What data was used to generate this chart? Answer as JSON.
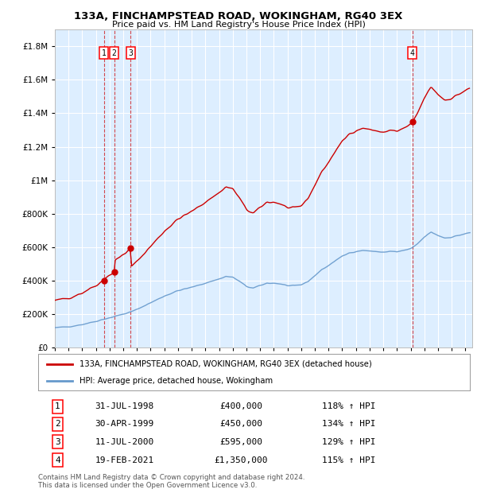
{
  "title": "133A, FINCHAMPSTEAD ROAD, WOKINGHAM, RG40 3EX",
  "subtitle": "Price paid vs. HM Land Registry's House Price Index (HPI)",
  "legend_line1": "133A, FINCHAMPSTEAD ROAD, WOKINGHAM, RG40 3EX (detached house)",
  "legend_line2": "HPI: Average price, detached house, Wokingham",
  "footer_line1": "Contains HM Land Registry data © Crown copyright and database right 2024.",
  "footer_line2": "This data is licensed under the Open Government Licence v3.0.",
  "transactions": [
    {
      "label": "1",
      "date": "31-JUL-1998",
      "price": 400000,
      "hpi_pct": "118% ↑ HPI",
      "year": 1998.58
    },
    {
      "label": "2",
      "date": "30-APR-1999",
      "price": 450000,
      "hpi_pct": "134% ↑ HPI",
      "year": 1999.33
    },
    {
      "label": "3",
      "date": "11-JUL-2000",
      "price": 595000,
      "hpi_pct": "129% ↑ HPI",
      "year": 2000.53
    },
    {
      "label": "4",
      "date": "19-FEB-2021",
      "price": 1350000,
      "hpi_pct": "115% ↑ HPI",
      "year": 2021.13
    }
  ],
  "hpi_color": "#6699cc",
  "price_color": "#cc0000",
  "plot_bg_color": "#ddeeff",
  "ylim": [
    0,
    1900000
  ],
  "xlim_start": 1995.0,
  "xlim_end": 2025.5,
  "yticks": [
    0,
    200000,
    400000,
    600000,
    800000,
    1000000,
    1200000,
    1400000,
    1600000,
    1800000
  ],
  "ytick_labels": [
    "£0",
    "£200K",
    "£400K",
    "£600K",
    "£800K",
    "£1M",
    "£1.2M",
    "£1.4M",
    "£1.6M",
    "£1.8M"
  ],
  "xtick_years": [
    1995,
    1996,
    1997,
    1998,
    1999,
    2000,
    2001,
    2002,
    2003,
    2004,
    2005,
    2006,
    2007,
    2008,
    2009,
    2010,
    2011,
    2012,
    2013,
    2014,
    2015,
    2016,
    2017,
    2018,
    2019,
    2020,
    2021,
    2022,
    2023,
    2024,
    2025
  ]
}
